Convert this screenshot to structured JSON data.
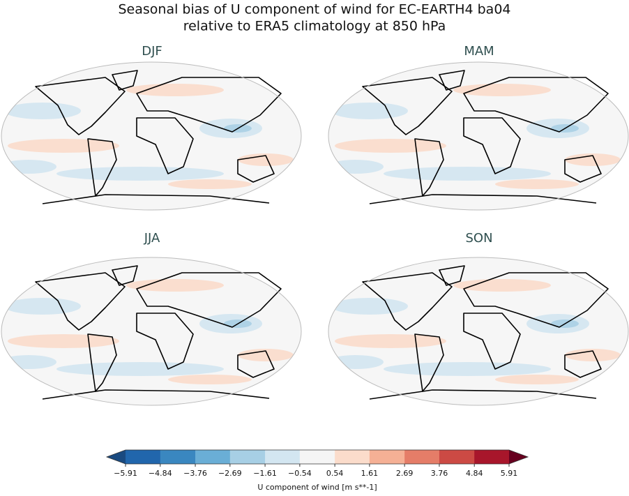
{
  "title": [
    "Seasonal bias of U component of wind for EC-EARTH4 ba04",
    "relative to ERA5 climatology at 850 hPa"
  ],
  "panels": [
    "DJF",
    "MAM",
    "JJA",
    "SON"
  ],
  "colorbar": {
    "label": "U component of wind [m s**-1]",
    "ticks": [
      {
        "value": -5.91,
        "label": "−5.91"
      },
      {
        "value": -4.84,
        "label": "−4.84"
      },
      {
        "value": -3.76,
        "label": "−3.76"
      },
      {
        "value": -2.69,
        "label": "−2.69"
      },
      {
        "value": -1.61,
        "label": "−1.61"
      },
      {
        "value": -0.54,
        "label": "−0.54"
      },
      0.54,
      1.61,
      2.69,
      3.76,
      4.84,
      5.91
    ],
    "colors": [
      "#2166ac",
      "#3a87c0",
      "#6aaed6",
      "#a7cfe5",
      "#d3e6f1",
      "#f5f5f5",
      "#fbdccb",
      "#f5b095",
      "#e57d68",
      "#cc4a44",
      "#a8162b"
    ],
    "under_color": "#1a4a80",
    "over_color": "#67001f"
  }
}
